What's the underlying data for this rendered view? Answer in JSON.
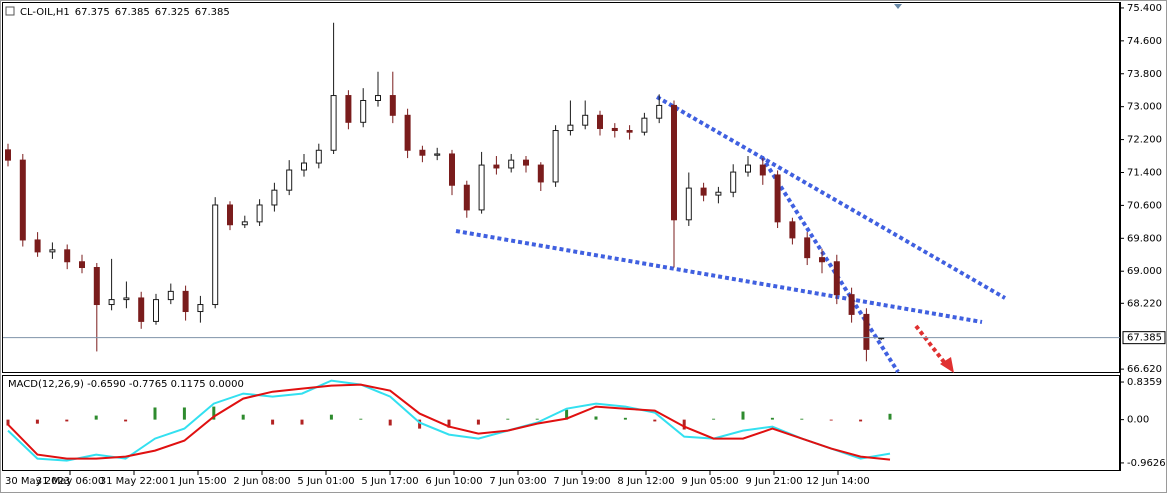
{
  "chart_data": [
    {
      "type": "candlestick",
      "title": "CL-OIL,H1",
      "up_color": "#1a1a1a",
      "down_color": "#7a1c1c",
      "last_price_color": "#7f93a8",
      "ylim": [
        66.55,
        75.52
      ],
      "yticks": [
        {
          "value": 75.4,
          "label": "75.400"
        },
        {
          "value": 74.6,
          "label": "74.600"
        },
        {
          "value": 73.8,
          "label": "73.800"
        },
        {
          "value": 73.0,
          "label": "73.000"
        },
        {
          "value": 72.2,
          "label": "72.200"
        },
        {
          "value": 71.4,
          "label": "71.400"
        },
        {
          "value": 70.6,
          "label": "70.600"
        },
        {
          "value": 69.8,
          "label": "69.800"
        },
        {
          "value": 69.0,
          "label": "69.000"
        },
        {
          "value": 68.22,
          "label": "68.220"
        },
        {
          "value": 66.62,
          "label": "66.620"
        }
      ],
      "x_labels": [
        "30 May 2023",
        "31 May 06:00",
        "31 May 22:00",
        "1 Jun 15:00",
        "2 Jun 08:00",
        "5 Jun 01:00",
        "5 Jun 17:00",
        "6 Jun 10:00",
        "7 Jun 03:00",
        "7 Jun 19:00",
        "8 Jun 12:00",
        "9 Jun 05:00",
        "9 Jun 21:00",
        "12 Jun 14:00"
      ],
      "candles": [
        [
          71.95,
          72.1,
          71.55,
          71.7
        ],
        [
          71.7,
          71.85,
          69.6,
          69.76
        ],
        [
          69.76,
          69.95,
          69.35,
          69.47
        ],
        [
          69.47,
          69.7,
          69.3,
          69.52
        ],
        [
          69.52,
          69.65,
          69.05,
          69.23
        ],
        [
          69.23,
          69.4,
          68.95,
          69.09
        ],
        [
          69.09,
          69.2,
          67.05,
          68.19
        ],
        [
          68.19,
          69.3,
          68.05,
          68.31
        ],
        [
          68.31,
          68.75,
          68.1,
          68.35
        ],
        [
          68.35,
          68.5,
          67.6,
          67.78
        ],
        [
          67.78,
          68.45,
          67.7,
          68.31
        ],
        [
          68.31,
          68.7,
          68.2,
          68.51
        ],
        [
          68.51,
          68.65,
          67.8,
          68.02
        ],
        [
          68.02,
          68.4,
          67.75,
          68.19
        ],
        [
          68.19,
          70.8,
          68.1,
          70.61
        ],
        [
          70.61,
          70.7,
          70.0,
          70.13
        ],
        [
          70.13,
          70.35,
          70.05,
          70.2
        ],
        [
          70.2,
          70.75,
          70.1,
          70.61
        ],
        [
          70.61,
          71.15,
          70.45,
          70.97
        ],
        [
          70.97,
          71.7,
          70.85,
          71.46
        ],
        [
          71.46,
          71.85,
          71.3,
          71.63
        ],
        [
          71.63,
          72.1,
          71.5,
          71.94
        ],
        [
          71.94,
          75.04,
          71.85,
          73.27
        ],
        [
          73.27,
          73.4,
          72.45,
          72.62
        ],
        [
          72.62,
          73.45,
          72.5,
          73.15
        ],
        [
          73.15,
          73.85,
          73.0,
          73.27
        ],
        [
          73.27,
          73.85,
          72.6,
          72.79
        ],
        [
          72.79,
          72.95,
          71.75,
          71.94
        ],
        [
          71.94,
          72.05,
          71.65,
          71.82
        ],
        [
          71.82,
          72.0,
          71.7,
          71.85
        ],
        [
          71.85,
          71.95,
          70.85,
          71.09
        ],
        [
          71.09,
          71.2,
          70.3,
          70.49
        ],
        [
          70.49,
          71.9,
          70.4,
          71.58
        ],
        [
          71.58,
          71.8,
          71.35,
          71.51
        ],
        [
          71.51,
          71.85,
          71.4,
          71.7
        ],
        [
          71.7,
          71.8,
          71.4,
          71.58
        ],
        [
          71.58,
          71.65,
          70.95,
          71.17
        ],
        [
          71.17,
          72.55,
          71.05,
          72.42
        ],
        [
          72.42,
          73.15,
          72.3,
          72.55
        ],
        [
          72.55,
          73.15,
          72.45,
          72.79
        ],
        [
          72.79,
          72.9,
          72.3,
          72.47
        ],
        [
          72.47,
          72.6,
          72.25,
          72.42
        ],
        [
          72.42,
          72.55,
          72.2,
          72.38
        ],
        [
          72.38,
          72.85,
          72.3,
          72.72
        ],
        [
          72.72,
          73.3,
          72.6,
          73.03
        ],
        [
          73.03,
          73.15,
          69.09,
          70.25
        ],
        [
          70.25,
          71.4,
          70.1,
          71.02
        ],
        [
          71.02,
          71.15,
          70.7,
          70.85
        ],
        [
          70.85,
          71.05,
          70.65,
          70.92
        ],
        [
          70.92,
          71.6,
          70.8,
          71.41
        ],
        [
          71.41,
          71.8,
          71.3,
          71.58
        ],
        [
          71.58,
          71.75,
          71.1,
          71.34
        ],
        [
          71.34,
          71.45,
          70.05,
          70.2
        ],
        [
          70.2,
          70.3,
          69.65,
          69.81
        ],
        [
          69.81,
          69.95,
          69.15,
          69.33
        ],
        [
          69.33,
          69.55,
          68.95,
          69.23
        ],
        [
          69.23,
          69.4,
          68.2,
          68.43
        ],
        [
          68.43,
          68.6,
          67.75,
          67.95
        ],
        [
          67.95,
          68.1,
          66.81,
          67.1
        ],
        [
          67.375,
          67.385,
          67.325,
          67.385
        ]
      ]
    },
    {
      "type": "macd",
      "title": "MACD(12,26,9) -0.6590 -0.7765 0.1175 0.0000",
      "ylim": [
        -1.12,
        0.97
      ],
      "yticks": [
        0.8359,
        {
          "value": 0,
          "label": "0.00"
        },
        -0.9626
      ],
      "main_color": "#33e0f0",
      "signal_color": "#e01010",
      "hist_up_color": "#2e8b2e",
      "hist_down_color": "#b22222",
      "main": [
        -0.244,
        -0.867,
        -0.911,
        -0.778,
        -0.867,
        -0.422,
        -0.2,
        0.356,
        0.578,
        0.511,
        0.578,
        0.867,
        0.778,
        0.511,
        -0.067,
        -0.333,
        -0.422,
        -0.244,
        -0.067,
        0.244,
        0.356,
        0.289,
        0.156,
        -0.378,
        -0.422,
        -0.244,
        -0.156,
        -0.422,
        -0.644,
        -0.867,
        -0.756
      ],
      "signal": [
        -0.111,
        -0.778,
        -0.867,
        -0.867,
        -0.822,
        -0.689,
        -0.467,
        0.067,
        0.467,
        0.622,
        0.689,
        0.756,
        0.778,
        0.644,
        0.133,
        -0.156,
        -0.311,
        -0.244,
        -0.089,
        0.022,
        0.289,
        0.244,
        0.2,
        -0.156,
        -0.422,
        -0.422,
        -0.2,
        -0.422,
        -0.644,
        -0.822,
        -0.889
      ],
      "histogram": [
        -0.13,
        -0.09,
        -0.04,
        0.09,
        -0.04,
        0.27,
        0.27,
        0.29,
        0.11,
        -0.11,
        -0.11,
        0.11,
        0.02,
        -0.13,
        -0.2,
        -0.18,
        -0.11,
        0.02,
        0.02,
        0.22,
        0.07,
        0.04,
        -0.04,
        -0.22,
        0.02,
        0.18,
        0.04,
        0.02,
        -0.02,
        -0.04,
        0.13
      ]
    }
  ]
}
